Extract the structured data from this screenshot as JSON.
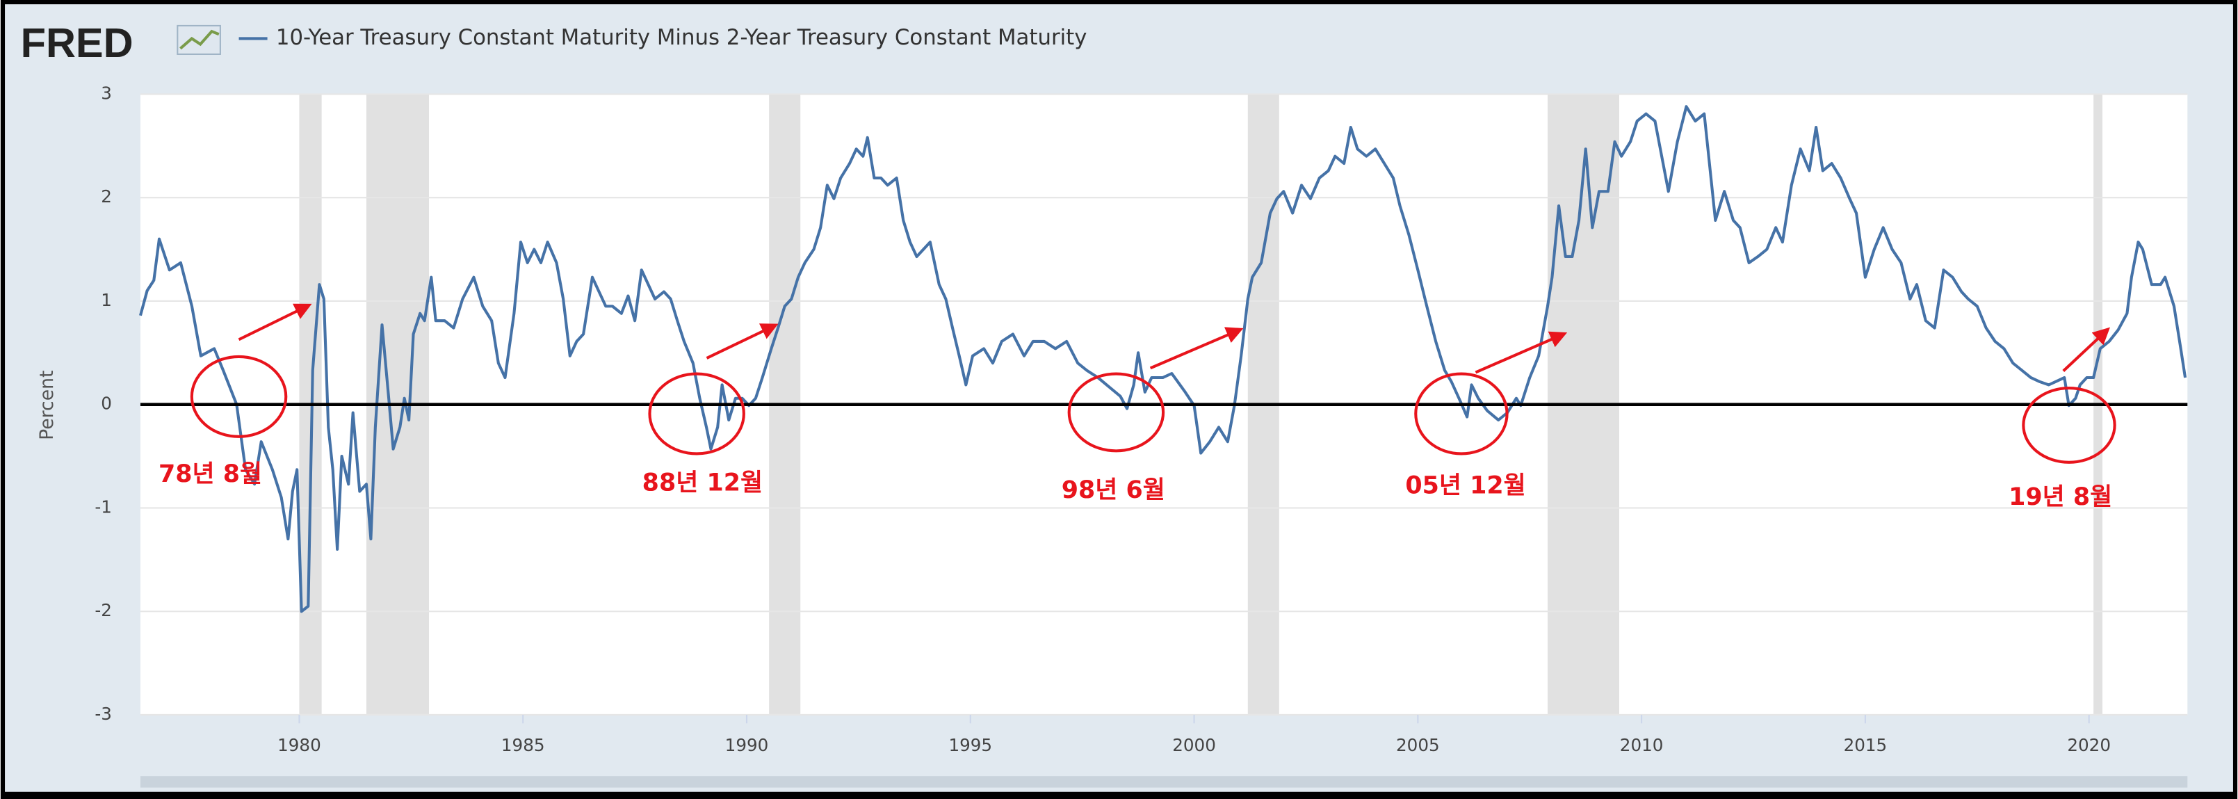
{
  "chart_data": {
    "type": "line",
    "logo": "FRED",
    "y_label": "Percent",
    "xlim": [
      1976.45,
      2022.2
    ],
    "xticks": [
      1980,
      1985,
      1990,
      1995,
      2000,
      2005,
      2010,
      2015,
      2020
    ],
    "ylim": [
      -3,
      3
    ],
    "yticks": [
      -3,
      -2,
      -1,
      0,
      1,
      2,
      3
    ],
    "grid": true,
    "zero_line": true,
    "shaded_periods": [
      [
        1980.0,
        1980.5
      ],
      [
        1981.5,
        1982.9
      ],
      [
        1990.5,
        1991.2
      ],
      [
        2001.2,
        2001.9
      ],
      [
        2007.9,
        2009.5
      ],
      [
        2020.1,
        2020.3
      ]
    ],
    "shade_color": "#e1e1e1",
    "annotations": [
      "78년 8월",
      "88년 12월",
      "98년 6월",
      "05년 12월",
      "19년 8월"
    ],
    "annotation_color": "#e8141c",
    "x": [
      1976.45,
      1976.6,
      1976.75,
      1976.87,
      1977.1,
      1977.35,
      1977.6,
      1977.8,
      1978.1,
      1978.3,
      1978.6,
      1978.8,
      1979.0,
      1979.15,
      1979.4,
      1979.6,
      1979.75,
      1979.85,
      1979.95,
      1980.05,
      1980.2,
      1980.3,
      1980.45,
      1980.55,
      1980.65,
      1980.75,
      1980.85,
      1980.95,
      1981.1,
      1981.2,
      1981.35,
      1981.5,
      1981.6,
      1981.7,
      1981.85,
      1982.0,
      1982.1,
      1982.25,
      1982.35,
      1982.45,
      1982.55,
      1982.7,
      1982.8,
      1982.95,
      1983.05,
      1983.25,
      1983.45,
      1983.65,
      1983.9,
      1984.1,
      1984.3,
      1984.45,
      1984.6,
      1984.8,
      1984.95,
      1985.1,
      1985.25,
      1985.4,
      1985.55,
      1985.75,
      1985.9,
      1986.05,
      1986.2,
      1986.35,
      1986.55,
      1986.7,
      1986.85,
      1987.0,
      1987.2,
      1987.35,
      1987.5,
      1987.65,
      1987.8,
      1987.95,
      1988.15,
      1988.3,
      1988.45,
      1988.6,
      1988.8,
      1988.95,
      1989.1,
      1989.2,
      1989.35,
      1989.45,
      1989.6,
      1989.75,
      1989.9,
      1990.05,
      1990.2,
      1990.35,
      1990.55,
      1990.7,
      1990.85,
      1991.0,
      1991.15,
      1991.3,
      1991.5,
      1991.65,
      1991.8,
      1991.95,
      1992.1,
      1992.3,
      1992.45,
      1992.6,
      1992.7,
      1992.85,
      1993.0,
      1993.15,
      1993.35,
      1993.5,
      1993.65,
      1993.8,
      1993.95,
      1994.1,
      1994.3,
      1994.45,
      1994.6,
      1994.75,
      1994.9,
      1995.05,
      1995.3,
      1995.5,
      1995.7,
      1995.95,
      1996.2,
      1996.4,
      1996.65,
      1996.9,
      1997.15,
      1997.4,
      1997.6,
      1997.85,
      1998.1,
      1998.35,
      1998.5,
      1998.65,
      1998.75,
      1998.9,
      1999.05,
      1999.3,
      1999.5,
      1999.8,
      2000.0,
      2000.15,
      2000.35,
      2000.55,
      2000.75,
      2000.9,
      2001.05,
      2001.2,
      2001.3,
      2001.5,
      2001.7,
      2001.85,
      2002.0,
      2002.2,
      2002.4,
      2002.6,
      2002.8,
      2003.0,
      2003.15,
      2003.35,
      2003.5,
      2003.65,
      2003.85,
      2004.05,
      2004.25,
      2004.45,
      2004.6,
      2004.8,
      2005.0,
      2005.2,
      2005.4,
      2005.6,
      2005.75,
      2005.95,
      2006.1,
      2006.2,
      2006.35,
      2006.55,
      2006.8,
      2007.0,
      2007.2,
      2007.3,
      2007.5,
      2007.7,
      2007.9,
      2008.0,
      2008.15,
      2008.3,
      2008.45,
      2008.6,
      2008.75,
      2008.9,
      2009.05,
      2009.25,
      2009.4,
      2009.55,
      2009.75,
      2009.9,
      2010.1,
      2010.3,
      2010.45,
      2010.6,
      2010.8,
      2011.0,
      2011.2,
      2011.4,
      2011.5,
      2011.65,
      2011.85,
      2012.05,
      2012.2,
      2012.4,
      2012.6,
      2012.8,
      2013.0,
      2013.15,
      2013.35,
      2013.55,
      2013.75,
      2013.9,
      2014.05,
      2014.25,
      2014.45,
      2014.65,
      2014.8,
      2015.0,
      2015.2,
      2015.4,
      2015.6,
      2015.8,
      2016.0,
      2016.15,
      2016.35,
      2016.55,
      2016.75,
      2016.95,
      2017.15,
      2017.3,
      2017.5,
      2017.7,
      2017.9,
      2018.1,
      2018.3,
      2018.5,
      2018.7,
      2018.9,
      2019.1,
      2019.25,
      2019.45,
      2019.55,
      2019.7,
      2019.8,
      2019.95,
      2020.1,
      2020.25,
      2020.45,
      2020.65,
      2020.85,
      2020.95,
      2021.1,
      2021.2,
      2021.4,
      2021.6,
      2021.7,
      2021.9,
      2022.05,
      2022.15
    ],
    "series": [
      {
        "name": "10-Year Treasury Constant Maturity Minus 2-Year Treasury Constant Maturity",
        "color": "#4572a7",
        "values": [
          0.86,
          1.1,
          1.2,
          1.6,
          1.3,
          1.37,
          0.95,
          0.47,
          0.54,
          0.33,
          0.0,
          -0.63,
          -0.77,
          -0.36,
          -0.63,
          -0.9,
          -1.3,
          -0.84,
          -0.63,
          -2.0,
          -1.95,
          0.33,
          1.16,
          1.02,
          -0.22,
          -0.63,
          -1.4,
          -0.5,
          -0.77,
          -0.08,
          -0.84,
          -0.77,
          -1.3,
          -0.22,
          0.77,
          0.06,
          -0.43,
          -0.22,
          0.06,
          -0.15,
          0.68,
          0.88,
          0.81,
          1.23,
          0.81,
          0.81,
          0.74,
          1.02,
          1.23,
          0.95,
          0.81,
          0.4,
          0.26,
          0.88,
          1.57,
          1.37,
          1.5,
          1.37,
          1.57,
          1.37,
          1.02,
          0.47,
          0.61,
          0.68,
          1.23,
          1.09,
          0.95,
          0.95,
          0.88,
          1.05,
          0.81,
          1.3,
          1.16,
          1.02,
          1.09,
          1.02,
          0.81,
          0.61,
          0.4,
          0.06,
          -0.22,
          -0.43,
          -0.22,
          0.19,
          -0.15,
          0.06,
          0.06,
          -0.01,
          0.06,
          0.26,
          0.54,
          0.74,
          0.95,
          1.02,
          1.23,
          1.37,
          1.5,
          1.71,
          2.12,
          1.99,
          2.19,
          2.33,
          2.47,
          2.4,
          2.58,
          2.19,
          2.19,
          2.12,
          2.19,
          1.78,
          1.57,
          1.43,
          1.5,
          1.57,
          1.16,
          1.02,
          0.74,
          0.47,
          0.19,
          0.47,
          0.54,
          0.4,
          0.61,
          0.68,
          0.47,
          0.61,
          0.61,
          0.54,
          0.61,
          0.4,
          0.33,
          0.26,
          0.17,
          0.08,
          -0.04,
          0.19,
          0.5,
          0.12,
          0.26,
          0.26,
          0.3,
          0.12,
          -0.01,
          -0.47,
          -0.36,
          -0.22,
          -0.36,
          -0.01,
          0.47,
          1.02,
          1.23,
          1.37,
          1.85,
          1.99,
          2.06,
          1.85,
          2.12,
          1.99,
          2.19,
          2.26,
          2.4,
          2.33,
          2.68,
          2.47,
          2.4,
          2.47,
          2.33,
          2.19,
          1.92,
          1.64,
          1.3,
          0.95,
          0.61,
          0.33,
          0.22,
          0.03,
          -0.12,
          0.19,
          0.06,
          -0.06,
          -0.15,
          -0.08,
          0.06,
          -0.01,
          0.26,
          0.47,
          0.95,
          1.23,
          1.92,
          1.43,
          1.43,
          1.78,
          2.47,
          1.71,
          2.06,
          2.06,
          2.54,
          2.4,
          2.54,
          2.74,
          2.81,
          2.74,
          2.4,
          2.06,
          2.54,
          2.88,
          2.74,
          2.81,
          2.4,
          1.78,
          2.06,
          1.78,
          1.71,
          1.37,
          1.43,
          1.5,
          1.71,
          1.57,
          2.12,
          2.47,
          2.26,
          2.68,
          2.26,
          2.33,
          2.19,
          1.99,
          1.85,
          1.23,
          1.5,
          1.71,
          1.5,
          1.37,
          1.02,
          1.16,
          0.81,
          0.74,
          1.3,
          1.23,
          1.09,
          1.02,
          0.95,
          0.74,
          0.61,
          0.54,
          0.4,
          0.33,
          0.26,
          0.22,
          0.19,
          0.22,
          0.26,
          -0.01,
          0.06,
          0.19,
          0.26,
          0.26,
          0.54,
          0.61,
          0.72,
          0.88,
          1.23,
          1.57,
          1.5,
          1.16,
          1.16,
          1.23,
          0.95,
          0.54,
          0.26
        ]
      }
    ]
  }
}
